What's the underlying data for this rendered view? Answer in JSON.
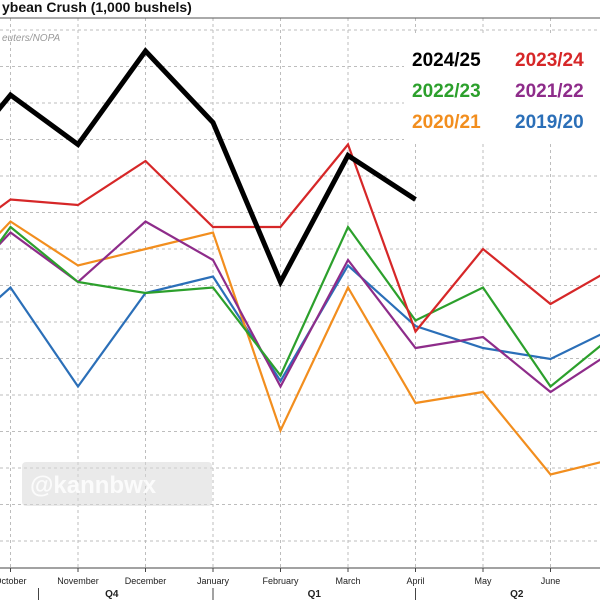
{
  "chart_data": {
    "type": "line",
    "title": "ybean Crush (1,000 bushels)",
    "source": "euters/NOPA",
    "watermark": "@kannbwx",
    "categories": [
      "",
      "October",
      "November",
      "December",
      "January",
      "February",
      "March",
      "April",
      "May",
      "June",
      ""
    ],
    "quarters": [
      {
        "label": "Q4",
        "from": 1,
        "to": 4
      },
      {
        "label": "Q1",
        "from": 4,
        "to": 7
      },
      {
        "label": "Q2",
        "from": 7,
        "to": 10
      }
    ],
    "ylim": [
      0,
      100
    ],
    "grid": true,
    "legend_position": "top-right",
    "series": [
      {
        "name": "2024/25",
        "color": "#000000",
        "width": 5,
        "values": [
          71,
          86,
          77,
          94,
          81,
          52,
          75,
          67,
          null,
          null,
          null
        ]
      },
      {
        "name": "2023/24",
        "color": "#d62728",
        "width": 2.2,
        "values": [
          58,
          67,
          66,
          74,
          62,
          62,
          77,
          43,
          58,
          48,
          55
        ]
      },
      {
        "name": "2022/23",
        "color": "#2ca02c",
        "width": 2.2,
        "values": [
          45,
          62,
          52,
          50,
          51,
          35,
          62,
          45,
          51,
          33,
          43
        ]
      },
      {
        "name": "2021/22",
        "color": "#8e2c8a",
        "width": 2.2,
        "values": [
          48,
          61,
          52,
          63,
          56,
          33,
          56,
          40,
          42,
          32,
          40
        ]
      },
      {
        "name": "2020/21",
        "color": "#f28e1e",
        "width": 2.2,
        "values": [
          50,
          63,
          55,
          58,
          61,
          25,
          51,
          30,
          32,
          17,
          20
        ]
      },
      {
        "name": "2019/20",
        "color": "#2b6fb8",
        "width": 2.2,
        "values": [
          40,
          51,
          33,
          50,
          53,
          34,
          55,
          44,
          40,
          38,
          44
        ]
      }
    ]
  }
}
